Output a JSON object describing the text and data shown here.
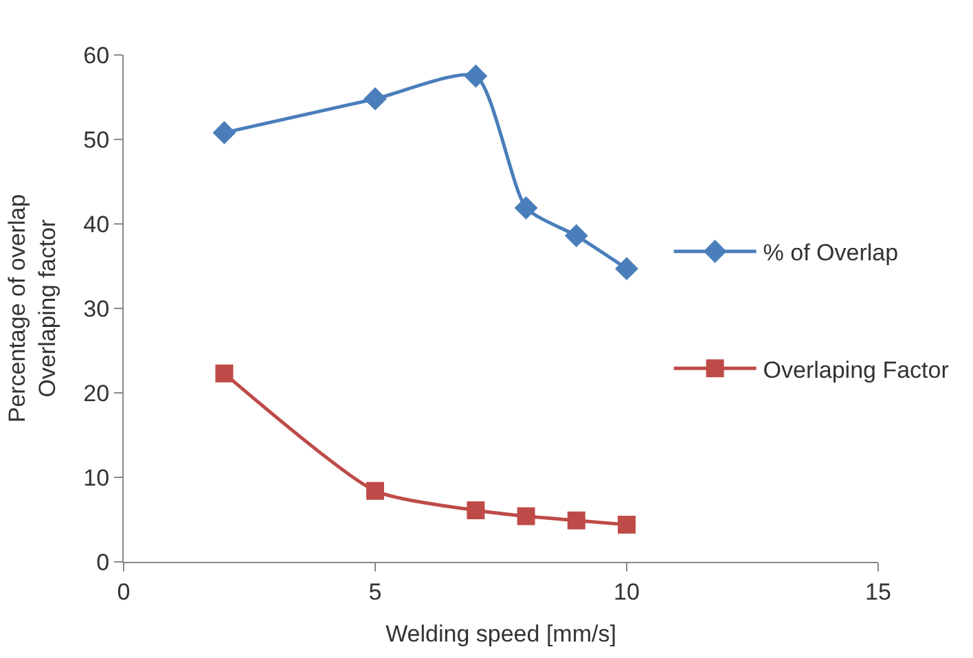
{
  "chart_data": {
    "type": "line",
    "xlabel": "Welding speed [mm/s]",
    "ylabel": "Percentage of overlap\nOverlaping factor",
    "x": [
      2,
      5,
      7,
      8,
      9,
      10
    ],
    "series": [
      {
        "name": "% of Overlap",
        "color": "#4a7ebb",
        "marker": "diamond",
        "values": [
          50.8,
          54.8,
          57.5,
          41.9,
          38.6,
          34.7
        ]
      },
      {
        "name": "Overlaping Factor",
        "color": "#be4b48",
        "marker": "square",
        "values": [
          22.3,
          8.4,
          6.1,
          5.4,
          4.9,
          4.4
        ]
      }
    ],
    "xlim": [
      0,
      15
    ],
    "xticks": [
      0,
      5,
      10,
      15
    ],
    "ylim": [
      0,
      60
    ],
    "yticks": [
      0,
      10,
      20,
      30,
      40,
      50,
      60
    ],
    "legend": "right"
  }
}
